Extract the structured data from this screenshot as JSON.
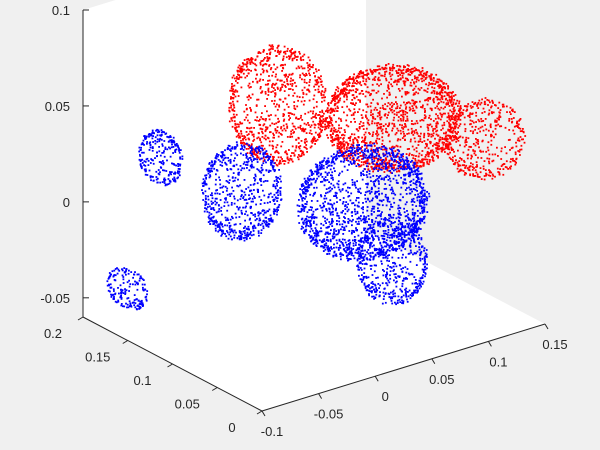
{
  "chart_data": {
    "type": "scatter",
    "dimensions": 3,
    "view": "default 3-D perspective",
    "box": true,
    "grid": false,
    "colors": {
      "background": "#f0f0f0",
      "axes_bg": "#ffffff",
      "axis_line": "#262626",
      "series1": "#ff0000",
      "series2": "#0000ff"
    },
    "xlim": [
      -0.1,
      0.15
    ],
    "ylim": [
      0,
      0.2
    ],
    "zlim": [
      -0.06,
      0.1
    ],
    "x_ticks": [
      {
        "value": -0.1,
        "label": "-0.1"
      },
      {
        "value": -0.05,
        "label": "-0.05"
      },
      {
        "value": 0,
        "label": "0"
      },
      {
        "value": 0.05,
        "label": "0.05"
      },
      {
        "value": 0.1,
        "label": "0.1"
      },
      {
        "value": 0.15,
        "label": "0.15"
      }
    ],
    "y_ticks": [
      {
        "value": 0,
        "label": "0"
      },
      {
        "value": 0.05,
        "label": "0.05"
      },
      {
        "value": 0.1,
        "label": "0.1"
      },
      {
        "value": 0.15,
        "label": "0.15"
      },
      {
        "value": 0.2,
        "label": "0.2"
      }
    ],
    "z_ticks": [
      {
        "value": -0.05,
        "label": "-0.05"
      },
      {
        "value": 0,
        "label": "0"
      },
      {
        "value": 0.05,
        "label": "0.05"
      },
      {
        "value": 0.1,
        "label": "0.1"
      }
    ],
    "series": [
      {
        "color": "#ff0000",
        "marker": "point",
        "blobs": [
          {
            "center": [
              0.07,
              0.07,
              0.045
            ],
            "radius": [
              0.05,
              0.045,
              0.025
            ],
            "count": 1600
          },
          {
            "center": [
              0.0,
              0.11,
              0.055
            ],
            "radius": [
              0.035,
              0.035,
              0.03
            ],
            "count": 900
          },
          {
            "center": [
              0.12,
              0.03,
              0.035
            ],
            "radius": [
              0.03,
              0.025,
              0.02
            ],
            "count": 450
          }
        ]
      },
      {
        "color": "#0000ff",
        "marker": "point",
        "blobs": [
          {
            "center": [
              0.06,
              0.09,
              -0.002
            ],
            "radius": [
              0.05,
              0.04,
              0.028
            ],
            "count": 1600
          },
          {
            "center": [
              0.0,
              0.15,
              0.0
            ],
            "radius": [
              0.03,
              0.025,
              0.025
            ],
            "count": 700
          },
          {
            "center": [
              0.03,
              0.02,
              -0.01
            ],
            "radius": [
              0.025,
              0.025,
              0.022
            ],
            "count": 500
          },
          {
            "center": [
              -0.04,
              0.19,
              0.015
            ],
            "radius": [
              0.012,
              0.02,
              0.014
            ],
            "count": 260
          },
          {
            "center": [
              -0.085,
              0.17,
              -0.04
            ],
            "radius": [
              0.01,
              0.02,
              0.01
            ],
            "count": 180
          }
        ]
      }
    ]
  }
}
